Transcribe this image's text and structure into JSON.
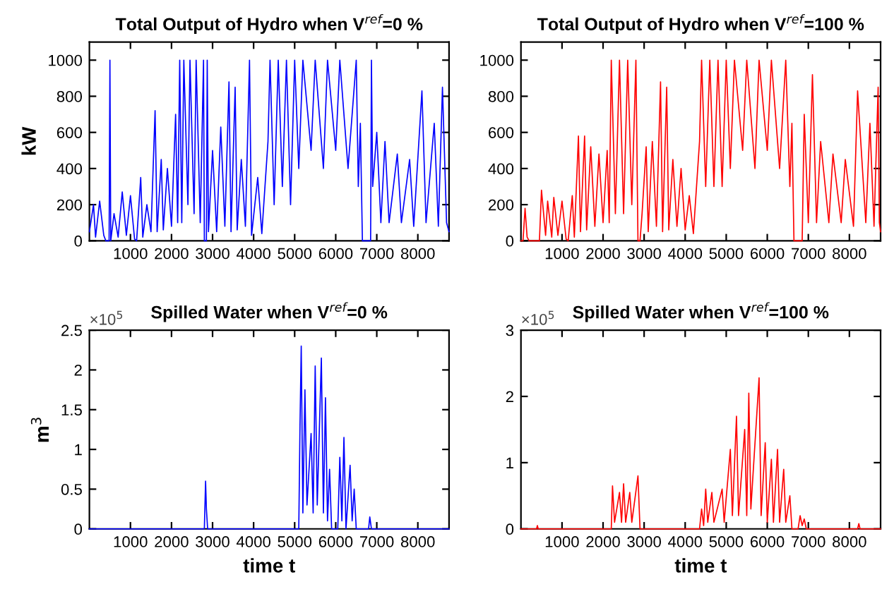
{
  "chart_data": [
    {
      "type": "line",
      "title": "Total Output of Hydro when V$^{ref}$=0 %",
      "ylabel": "kW",
      "xlim": [
        0,
        8760
      ],
      "xticks": [
        1000,
        2000,
        3000,
        4000,
        5000,
        6000,
        7000,
        8000
      ],
      "ylim": [
        0,
        1100
      ],
      "yticks": [
        0,
        200,
        400,
        600,
        800,
        1000
      ],
      "grid": false,
      "marker": "none",
      "line_style": "solid",
      "series": [
        {
          "color": "#0000ff",
          "x": [
            0,
            100,
            150,
            250,
            350,
            400,
            480,
            500,
            520,
            600,
            700,
            800,
            900,
            1000,
            1100,
            1150,
            1250,
            1300,
            1400,
            1500,
            1600,
            1650,
            1750,
            1800,
            1900,
            2000,
            2100,
            2150,
            2200,
            2250,
            2300,
            2400,
            2450,
            2550,
            2600,
            2700,
            2780,
            2800,
            2850,
            2870,
            2900,
            3000,
            3100,
            3200,
            3300,
            3400,
            3450,
            3550,
            3600,
            3700,
            3800,
            3900,
            3950,
            4100,
            4200,
            4350,
            4400,
            4500,
            4600,
            4700,
            4800,
            4900,
            5000,
            5100,
            5200,
            5400,
            5500,
            5700,
            5800,
            6000,
            6100,
            6300,
            6500,
            6550,
            6600,
            6650,
            6850,
            6870,
            6900,
            7000,
            7100,
            7200,
            7300,
            7500,
            7600,
            7800,
            7900,
            8100,
            8200,
            8400,
            8500,
            8600,
            8700,
            8760
          ],
          "values": [
            50,
            200,
            20,
            220,
            30,
            0,
            0,
            1000,
            0,
            150,
            20,
            270,
            30,
            250,
            10,
            0,
            350,
            20,
            200,
            50,
            720,
            50,
            450,
            60,
            400,
            80,
            700,
            100,
            1000,
            100,
            1000,
            200,
            1000,
            150,
            1000,
            100,
            1000,
            0,
            0,
            1000,
            50,
            500,
            50,
            630,
            80,
            880,
            50,
            850,
            60,
            450,
            80,
            1000,
            30,
            350,
            40,
            550,
            1000,
            200,
            1000,
            300,
            1000,
            200,
            1000,
            400,
            1000,
            500,
            1000,
            400,
            1000,
            500,
            1000,
            400,
            1000,
            300,
            650,
            0,
            0,
            1000,
            300,
            600,
            100,
            550,
            100,
            480,
            100,
            450,
            80,
            830,
            100,
            650,
            80,
            850,
            100,
            50
          ]
        }
      ]
    },
    {
      "type": "line",
      "title": "Total Output of Hydro when V$^{ref}$=100 %",
      "xlim": [
        0,
        8760
      ],
      "xticks": [
        1000,
        2000,
        3000,
        4000,
        5000,
        6000,
        7000,
        8000
      ],
      "ylim": [
        0,
        1100
      ],
      "yticks": [
        0,
        200,
        400,
        600,
        800,
        1000
      ],
      "grid": false,
      "marker": "none",
      "line_style": "solid",
      "series": [
        {
          "color": "#ff0000",
          "x": [
            0,
            50,
            100,
            150,
            200,
            450,
            500,
            600,
            650,
            750,
            800,
            900,
            1000,
            1100,
            1150,
            1250,
            1300,
            1400,
            1450,
            1550,
            1600,
            1700,
            1800,
            1900,
            2000,
            2100,
            2150,
            2200,
            2300,
            2400,
            2500,
            2600,
            2700,
            2800,
            2850,
            2900,
            2950,
            3050,
            3100,
            3200,
            3300,
            3400,
            3450,
            3550,
            3600,
            3700,
            3800,
            3900,
            4000,
            4100,
            4200,
            4350,
            4400,
            4500,
            4600,
            4700,
            4800,
            4900,
            5000,
            5100,
            5200,
            5400,
            5500,
            5700,
            5800,
            6000,
            6100,
            6300,
            6450,
            6550,
            6600,
            6650,
            6850,
            6900,
            7000,
            7100,
            7200,
            7300,
            7500,
            7600,
            7800,
            7900,
            8100,
            8200,
            8400,
            8500,
            8600,
            8700,
            8730,
            8760
          ],
          "values": [
            0,
            0,
            180,
            20,
            0,
            0,
            280,
            30,
            220,
            20,
            240,
            30,
            220,
            10,
            0,
            250,
            20,
            580,
            50,
            580,
            60,
            520,
            80,
            480,
            100,
            500,
            100,
            1000,
            150,
            1000,
            150,
            1000,
            200,
            1000,
            0,
            0,
            150,
            520,
            50,
            550,
            80,
            880,
            50,
            850,
            60,
            450,
            80,
            400,
            60,
            250,
            40,
            550,
            1000,
            300,
            1000,
            300,
            1000,
            300,
            1000,
            400,
            1000,
            500,
            1000,
            400,
            1000,
            500,
            1000,
            400,
            1000,
            300,
            650,
            0,
            0,
            700,
            100,
            920,
            100,
            550,
            100,
            480,
            100,
            450,
            80,
            830,
            100,
            650,
            80,
            850,
            100,
            50
          ]
        }
      ]
    },
    {
      "type": "line",
      "title": "Spilled Water when V$^{ref}$=0 %",
      "xlabel": "time t",
      "ylabel": "m$^{3}$",
      "annotations": [
        "×10$^{5}$"
      ],
      "xlim": [
        0,
        8760
      ],
      "xticks": [
        1000,
        2000,
        3000,
        4000,
        5000,
        6000,
        7000,
        8000
      ],
      "ylim": [
        0,
        2.5
      ],
      "yticks": [
        0,
        0.5,
        1,
        1.5,
        2,
        2.5
      ],
      "grid": false,
      "marker": "none",
      "line_style": "solid",
      "series": [
        {
          "color": "#0000ff",
          "x": [
            0,
            2800,
            2830,
            2850,
            2880,
            5100,
            5130,
            5160,
            5200,
            5250,
            5300,
            5400,
            5450,
            5500,
            5550,
            5650,
            5700,
            5750,
            5800,
            5850,
            5900,
            6050,
            6100,
            6150,
            6200,
            6250,
            6350,
            6400,
            6450,
            6500,
            6800,
            6830,
            6870,
            8760
          ],
          "values": [
            0,
            0,
            0.6,
            0.25,
            0,
            0,
            1.3,
            2.3,
            0.2,
            1.75,
            0.3,
            1.2,
            0.2,
            2.05,
            0.3,
            2.15,
            0.2,
            1.65,
            0.1,
            0.75,
            0,
            0,
            0.9,
            0.1,
            1.15,
            0,
            0.8,
            0.1,
            0.5,
            0,
            0,
            0.15,
            0,
            0
          ]
        }
      ]
    },
    {
      "type": "line",
      "title": "Spilled Water when V$^{ref}$=100 %",
      "xlabel": "time t",
      "annotations": [
        "×10$^{5}$"
      ],
      "xlim": [
        0,
        8760
      ],
      "xticks": [
        1000,
        2000,
        3000,
        4000,
        5000,
        6000,
        7000,
        8000
      ],
      "ylim": [
        0,
        3
      ],
      "yticks": [
        0,
        1,
        2,
        3
      ],
      "grid": false,
      "marker": "none",
      "line_style": "solid",
      "series": [
        {
          "color": "#ff0000",
          "x": [
            0,
            380,
            400,
            420,
            2200,
            2230,
            2280,
            2400,
            2450,
            2500,
            2550,
            2650,
            2700,
            2850,
            2900,
            4350,
            4400,
            4450,
            4500,
            4550,
            4650,
            4700,
            4900,
            4950,
            5100,
            5150,
            5250,
            5300,
            5450,
            5500,
            5550,
            5600,
            5800,
            5850,
            5950,
            6000,
            6100,
            6150,
            6250,
            6300,
            6400,
            6450,
            6550,
            6600,
            6750,
            6800,
            6850,
            6900,
            6950,
            8200,
            8230,
            8260,
            8760
          ],
          "values": [
            0,
            0,
            0.05,
            0,
            0,
            0.65,
            0.1,
            0.55,
            0.1,
            0.68,
            0.1,
            0.55,
            0.1,
            0.8,
            0,
            0,
            0.3,
            0.05,
            0.6,
            0.1,
            0.55,
            0.1,
            0.6,
            0.1,
            1.2,
            0.2,
            1.7,
            0.2,
            1.5,
            0.2,
            2.05,
            0.3,
            2.28,
            0.2,
            1.3,
            0.1,
            1.05,
            0.1,
            1.2,
            0.1,
            0.9,
            0.1,
            0.5,
            0,
            0,
            0.2,
            0.05,
            0.15,
            0,
            0,
            0.08,
            0,
            0
          ]
        }
      ]
    }
  ]
}
